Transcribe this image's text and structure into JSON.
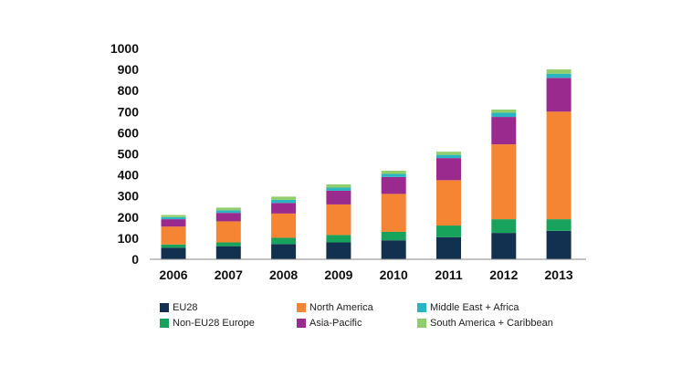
{
  "chart_data": {
    "type": "bar",
    "stacked": true,
    "categories": [
      "2006",
      "2007",
      "2008",
      "2009",
      "2010",
      "2011",
      "2012",
      "2013"
    ],
    "ylim": [
      0,
      1000
    ],
    "yticks": [
      0,
      100,
      200,
      300,
      400,
      500,
      600,
      700,
      800,
      900,
      1000
    ],
    "grid": false,
    "legend_position": "bottom",
    "series": [
      {
        "name": "EU28",
        "color": "#12304f",
        "values": [
          55,
          62,
          72,
          80,
          90,
          105,
          125,
          135
        ]
      },
      {
        "name": "Non-EU28 Europe",
        "color": "#17a35c",
        "values": [
          15,
          18,
          30,
          35,
          40,
          55,
          65,
          55
        ]
      },
      {
        "name": "North America",
        "color": "#f58532",
        "values": [
          85,
          100,
          115,
          145,
          180,
          215,
          355,
          510
        ]
      },
      {
        "name": "Asia-Pacific",
        "color": "#9a2a8e",
        "values": [
          35,
          40,
          50,
          65,
          80,
          105,
          130,
          160
        ]
      },
      {
        "name": "Middle East + Africa",
        "color": "#2bb5c2",
        "values": [
          10,
          12,
          15,
          15,
          15,
          15,
          20,
          20
        ]
      },
      {
        "name": "South America + Caribbean",
        "color": "#8fce6b",
        "values": [
          10,
          13,
          15,
          15,
          15,
          15,
          15,
          20
        ]
      }
    ]
  },
  "legend_order": [
    "EU28",
    "North America",
    "Middle East + Africa",
    "Non-EU28 Europe",
    "Asia-Pacific",
    "South America + Caribbean"
  ]
}
